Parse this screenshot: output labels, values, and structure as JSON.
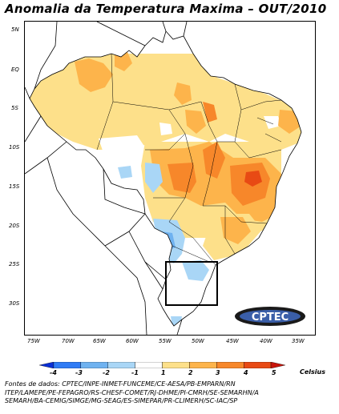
{
  "title": "Anomalia da Temperatura Maxima – OUT/2010",
  "lat_labels": [
    "5N",
    "EQ",
    "5S",
    "10S",
    "15S",
    "20S",
    "25S",
    "30S"
  ],
  "lon_labels": [
    "75W",
    "70W",
    "65W",
    "60W",
    "55W",
    "50W",
    "45W",
    "40W",
    "35W"
  ],
  "colorbar": {
    "values": [
      "-4",
      "-3",
      "-2",
      "-1",
      "1",
      "2",
      "3",
      "4",
      "5"
    ],
    "unit": "Celsius",
    "colors": [
      "#0a2fd6",
      "#2f7bf5",
      "#6fb2f0",
      "#a9d6f6",
      "#ffffff",
      "#fde08a",
      "#fdb44b",
      "#f7872a",
      "#e84a14",
      "#c8140a"
    ]
  },
  "sources": [
    "Fontes de dados: CPTEC/INPE-INMET-FUNCEME/CE-AESA/PB-EMPARN/RN",
    "ITEP/LAMEPE/PE-FEPAGRO/RS-CHESF-COMET/RJ-DHME/PI-CMRH/SE-SEMARHN/A",
    "SEMARH/BA-CEMIG/SIMGE/MG-SEAG/ES-SIMEPAR/PR-CLIMERH/SC-IAC/SP"
  ],
  "logo_text": "CPTEC",
  "map_colors": {
    "light_yellow": "#fde08a",
    "orange": "#fdb44b",
    "dark_orange": "#f7872a",
    "red_orange": "#e84a14",
    "light_blue": "#a9d6f6",
    "blue": "#6fb2f0",
    "box": "#000000"
  }
}
